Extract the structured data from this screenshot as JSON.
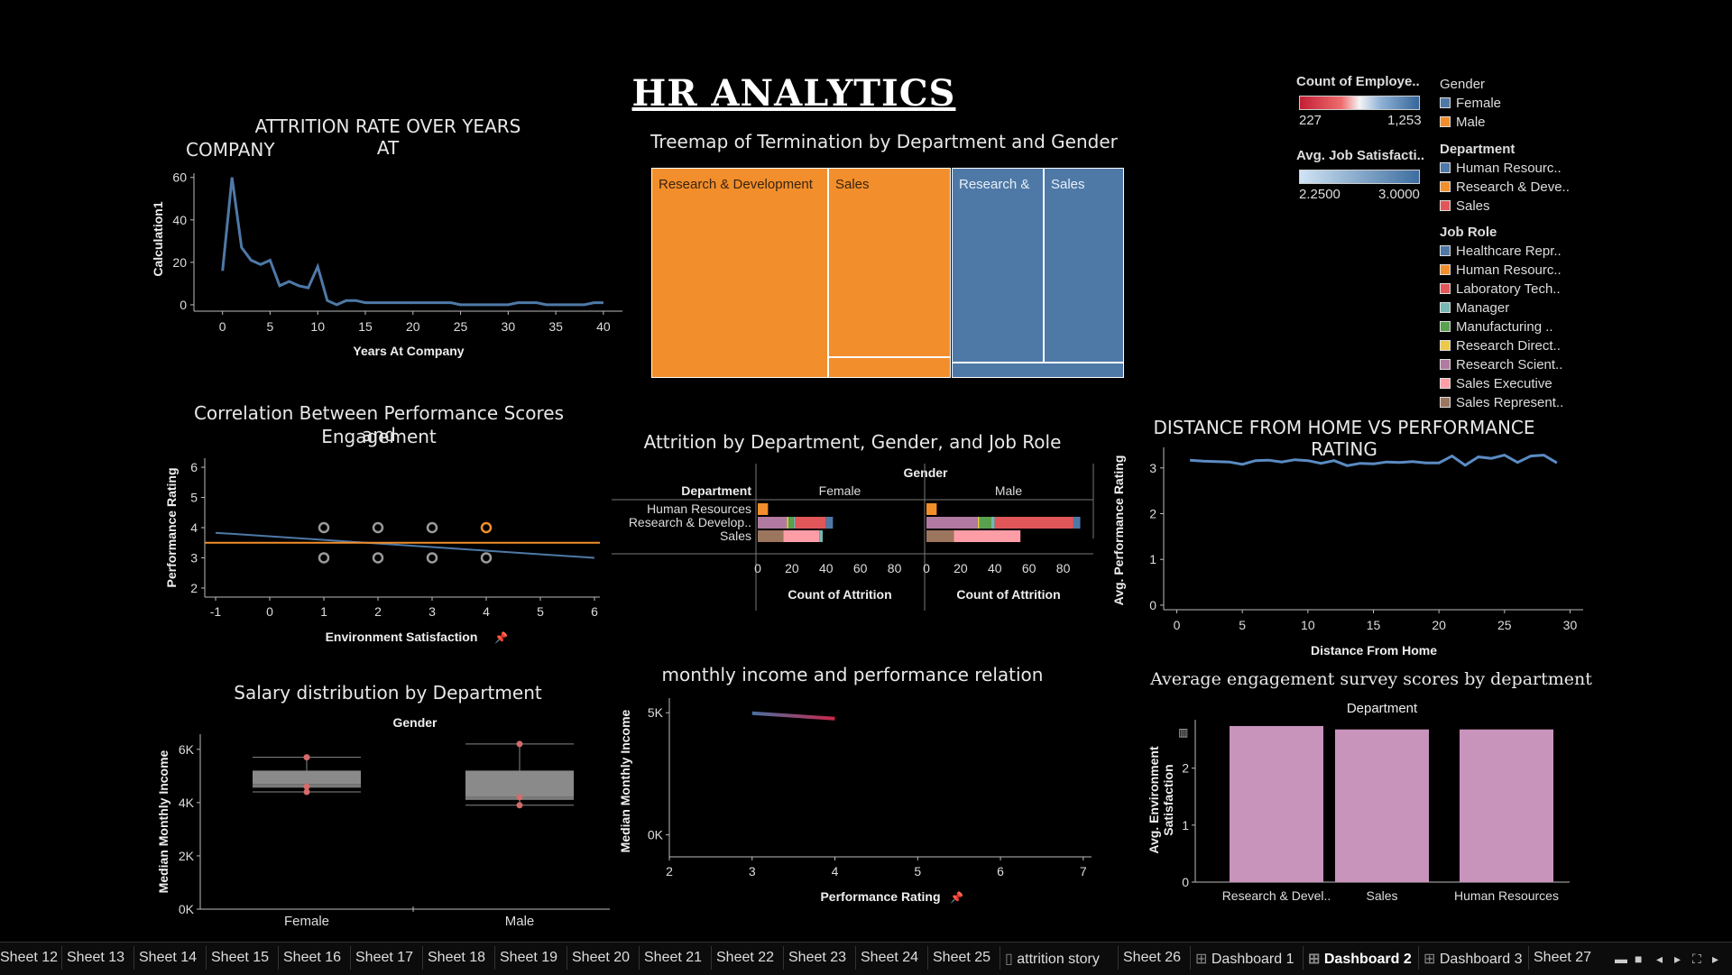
{
  "dashboard_title": "HR ANALYTICS",
  "panels": {
    "attrition": {
      "title_l1": "ATTRITION RATE OVER YEARS AT",
      "title_l2": "COMPANY",
      "ylabel": "Calculation1",
      "xlabel": "Years At Company",
      "xticks": [
        "0",
        "5",
        "10",
        "15",
        "20",
        "25",
        "30",
        "35",
        "40"
      ],
      "yticks": [
        "0",
        "20",
        "40",
        "60"
      ],
      "color": "#4e79a7"
    },
    "treemap": {
      "title": "Treemap of Termination by Department and Gender",
      "labels": [
        "Research & Development",
        "Sales",
        "Research &",
        "Sales"
      ],
      "orange": "#f28e2b",
      "blue": "#4e79a7"
    },
    "correlation": {
      "title_l1": "Correlation Between Performance Scores and",
      "title_l2": "Engagement",
      "ylabel": "Performance Rating",
      "xlabel": "Environment Satisfaction",
      "xticks": [
        "-1",
        "0",
        "1",
        "2",
        "3",
        "4",
        "5",
        "6"
      ],
      "yticks": [
        "2",
        "3",
        "4",
        "5",
        "6"
      ]
    },
    "attr_dept": {
      "title": "Attrition by Department, Gender, and Job Role",
      "gender_header": "Gender",
      "dept_header": "Department",
      "col_female": "Female",
      "col_male": "Male",
      "rows": [
        "Human Resources",
        "Research & Develop..",
        "Sales"
      ],
      "xticks": [
        "0",
        "20",
        "40",
        "60",
        "80"
      ],
      "xlabel": "Count of Attrition"
    },
    "distance": {
      "title": "DISTANCE FROM HOME VS PERFORMANCE RATING",
      "ylabel": "Avg. Performance Rating",
      "xlabel": "Distance From Home",
      "xticks": [
        "0",
        "5",
        "10",
        "15",
        "20",
        "25",
        "30"
      ],
      "yticks": [
        "0",
        "1",
        "2",
        "3"
      ]
    },
    "salary": {
      "title": "Salary distribution by Department",
      "header": "Gender",
      "ylabel": "Median Monthly Income",
      "yticks": [
        "0K",
        "2K",
        "4K",
        "6K"
      ],
      "cats": [
        "Female",
        "Male"
      ]
    },
    "income": {
      "title": "monthly income and performance relation",
      "ylabel": "Median Monthly Income",
      "xlabel": "Performance Rating",
      "yticks": [
        "0K",
        "5K"
      ],
      "xticks": [
        "2",
        "3",
        "4",
        "5",
        "6",
        "7"
      ]
    },
    "engagement": {
      "title": "Average engagement survey scores by department",
      "header": "Department",
      "ylabel_l1": "Avg. Environment",
      "ylabel_l2": "Satisfaction",
      "yticks": [
        "0",
        "1",
        "2"
      ],
      "cats": [
        "Research & Devel..",
        "Sales",
        "Human Resources"
      ],
      "bar_color": "#c994bc"
    }
  },
  "legend": {
    "count_title": "Count of Employe..",
    "count_min": "227",
    "count_max": "1,253",
    "jobsat_title": "Avg. Job Satisfacti..",
    "jobsat_min": "2.2500",
    "jobsat_max": "3.0000",
    "gender_title": "Gender",
    "gender_items": [
      {
        "label": "Female",
        "color": "#4e79a7"
      },
      {
        "label": "Male",
        "color": "#f28e2b"
      }
    ],
    "dept_title": "Department",
    "dept_items": [
      {
        "label": "Human Resourc..",
        "color": "#4e79a7"
      },
      {
        "label": "Research & Deve..",
        "color": "#f28e2b"
      },
      {
        "label": "Sales",
        "color": "#e15759"
      }
    ],
    "role_title": "Job Role",
    "role_items": [
      {
        "label": "Healthcare Repr..",
        "color": "#4e79a7"
      },
      {
        "label": "Human Resourc..",
        "color": "#f28e2b"
      },
      {
        "label": "Laboratory Tech..",
        "color": "#e15759"
      },
      {
        "label": "Manager",
        "color": "#76b7b2"
      },
      {
        "label": "Manufacturing ..",
        "color": "#59a14f"
      },
      {
        "label": "Research Direct..",
        "color": "#edc948"
      },
      {
        "label": "Research Scient..",
        "color": "#b07aa1"
      },
      {
        "label": "Sales Executive",
        "color": "#ff9da7"
      },
      {
        "label": "Sales Represent..",
        "color": "#9c755f"
      }
    ]
  },
  "tabs": [
    "Sheet 12",
    "Sheet 13",
    "Sheet 14",
    "Sheet 15",
    "Sheet 16",
    "Sheet 17",
    "Sheet 18",
    "Sheet 19",
    "Sheet 20",
    "Sheet 21",
    "Sheet 22",
    "Sheet 23",
    "Sheet 24",
    "Sheet 25",
    "attrition story",
    "Sheet 26",
    "Dashboard 1",
    "Dashboard 2",
    "Dashboard 3",
    "Sheet 27"
  ],
  "active_tab": "Dashboard 2",
  "chart_data": [
    {
      "type": "line",
      "title": "ATTRITION RATE OVER YEARS AT COMPANY",
      "xlabel": "Years At Company",
      "ylabel": "Calculation1",
      "x": [
        0,
        1,
        2,
        3,
        4,
        5,
        6,
        7,
        8,
        9,
        10,
        11,
        12,
        13,
        14,
        15,
        16,
        17,
        18,
        19,
        20,
        21,
        22,
        23,
        24,
        25,
        26,
        27,
        28,
        29,
        30,
        31,
        32,
        33,
        34,
        35,
        36,
        37,
        38,
        39,
        40
      ],
      "y": [
        16,
        60,
        27,
        21,
        19,
        21,
        9,
        11,
        9,
        8,
        18,
        2,
        0,
        2,
        2,
        1,
        1,
        1,
        1,
        1,
        1,
        1,
        1,
        1,
        1,
        0,
        0,
        0,
        0,
        0,
        0,
        1,
        1,
        1,
        0,
        0,
        0,
        0,
        0,
        1,
        1
      ],
      "xlim": [
        -3,
        42
      ],
      "ylim": [
        -3,
        62
      ]
    },
    {
      "type": "scatter",
      "title": "Correlation Between Performance Scores and Engagement",
      "xlabel": "Environment Satisfaction",
      "ylabel": "Performance Rating",
      "points": [
        {
          "x": 1,
          "y": 4
        },
        {
          "x": 2,
          "y": 4
        },
        {
          "x": 3,
          "y": 4
        },
        {
          "x": 4,
          "y": 4,
          "highlight": true
        },
        {
          "x": 1,
          "y": 3
        },
        {
          "x": 2,
          "y": 3
        },
        {
          "x": 3,
          "y": 3
        },
        {
          "x": 4,
          "y": 3
        }
      ],
      "trend": [
        [
          -1,
          3.83
        ],
        [
          6,
          3.0
        ]
      ],
      "avg_line": 3.5,
      "xlim": [
        -1.2,
        6.1
      ],
      "ylim": [
        1.7,
        6.3
      ]
    },
    {
      "type": "bar",
      "title": "Attrition by Department, Gender, and Job Role",
      "xlabel": "Count of Attrition",
      "xlim": [
        0,
        95
      ],
      "female": [
        [
          {
            "role": "Human Resources",
            "v": 6,
            "color": "#f28e2b"
          }
        ],
        [
          {
            "role": "Research Scientist",
            "v": 17,
            "color": "#b07aa1"
          },
          {
            "role": "Research Director",
            "v": 1,
            "color": "#edc948"
          },
          {
            "role": "Manufacturing Director",
            "v": 3,
            "color": "#59a14f"
          },
          {
            "role": "Manager",
            "v": 1,
            "color": "#76b7b2"
          },
          {
            "role": "Laboratory Technician",
            "v": 18,
            "color": "#e15759"
          },
          {
            "role": "Healthcare Representative",
            "v": 4,
            "color": "#4e79a7"
          }
        ],
        [
          {
            "role": "Sales Representative",
            "v": 15,
            "color": "#9c755f"
          },
          {
            "role": "Sales Executive",
            "v": 21,
            "color": "#ff9da7"
          },
          {
            "role": "Manager",
            "v": 2,
            "color": "#76b7b2"
          }
        ]
      ],
      "male": [
        [
          {
            "role": "Human Resources",
            "v": 6,
            "color": "#f28e2b"
          }
        ],
        [
          {
            "role": "Research Scientist",
            "v": 30,
            "color": "#b07aa1"
          },
          {
            "role": "Research Director",
            "v": 1,
            "color": "#edc948"
          },
          {
            "role": "Manufacturing Director",
            "v": 7,
            "color": "#59a14f"
          },
          {
            "role": "Manager",
            "v": 2,
            "color": "#76b7b2"
          },
          {
            "role": "Laboratory Technician",
            "v": 46,
            "color": "#e15759"
          },
          {
            "role": "Healthcare Representative",
            "v": 4,
            "color": "#4e79a7"
          }
        ],
        [
          {
            "role": "Sales Representative",
            "v": 16,
            "color": "#9c755f"
          },
          {
            "role": "Sales Executive",
            "v": 39,
            "color": "#ff9da7"
          }
        ]
      ]
    },
    {
      "type": "line",
      "title": "DISTANCE FROM HOME VS PERFORMANCE RATING",
      "xlabel": "Distance From Home",
      "ylabel": "Avg. Performance Rating",
      "x": [
        1,
        2,
        3,
        4,
        5,
        6,
        7,
        8,
        9,
        10,
        11,
        12,
        13,
        14,
        15,
        16,
        17,
        18,
        19,
        20,
        21,
        22,
        23,
        24,
        25,
        26,
        27,
        28,
        29
      ],
      "y": [
        3.17,
        3.15,
        3.14,
        3.13,
        3.08,
        3.16,
        3.17,
        3.13,
        3.18,
        3.16,
        3.1,
        3.16,
        3.05,
        3.1,
        3.09,
        3.13,
        3.12,
        3.14,
        3.11,
        3.11,
        3.26,
        3.06,
        3.24,
        3.21,
        3.28,
        3.12,
        3.26,
        3.28,
        3.11
      ],
      "xlim": [
        -1,
        31
      ],
      "ylim": [
        -0.1,
        3.45
      ]
    },
    {
      "type": "box",
      "title": "Salary distribution by Department",
      "ylabel": "Median Monthly Income",
      "ylim": [
        0,
        6500
      ],
      "boxes": [
        {
          "name": "Female",
          "whisker_low": 4400,
          "q1": 4560,
          "median": 4700,
          "q3": 5200,
          "whisker_high": 5700,
          "points": [
            4400,
            4600,
            5700
          ]
        },
        {
          "name": "Male",
          "whisker_low": 3900,
          "q1": 4100,
          "median": 4230,
          "q3": 5200,
          "whisker_high": 6200,
          "points": [
            3900,
            4200,
            6200
          ]
        }
      ]
    },
    {
      "type": "line",
      "title": "monthly income and performance relation",
      "xlabel": "Performance Rating",
      "ylabel": "Median Monthly Income",
      "x": [
        3,
        4
      ],
      "y": [
        4980,
        4760
      ],
      "xlim": [
        2,
        7.1
      ],
      "ylim": [
        -900,
        5600
      ]
    },
    {
      "type": "bar",
      "title": "Average engagement survey scores by department",
      "ylabel": "Avg. Environment Satisfaction",
      "categories": [
        "Research & Devel..",
        "Sales",
        "Human Resources"
      ],
      "values": [
        2.74,
        2.68,
        2.68
      ],
      "ylim": [
        0,
        2.85
      ]
    }
  ]
}
